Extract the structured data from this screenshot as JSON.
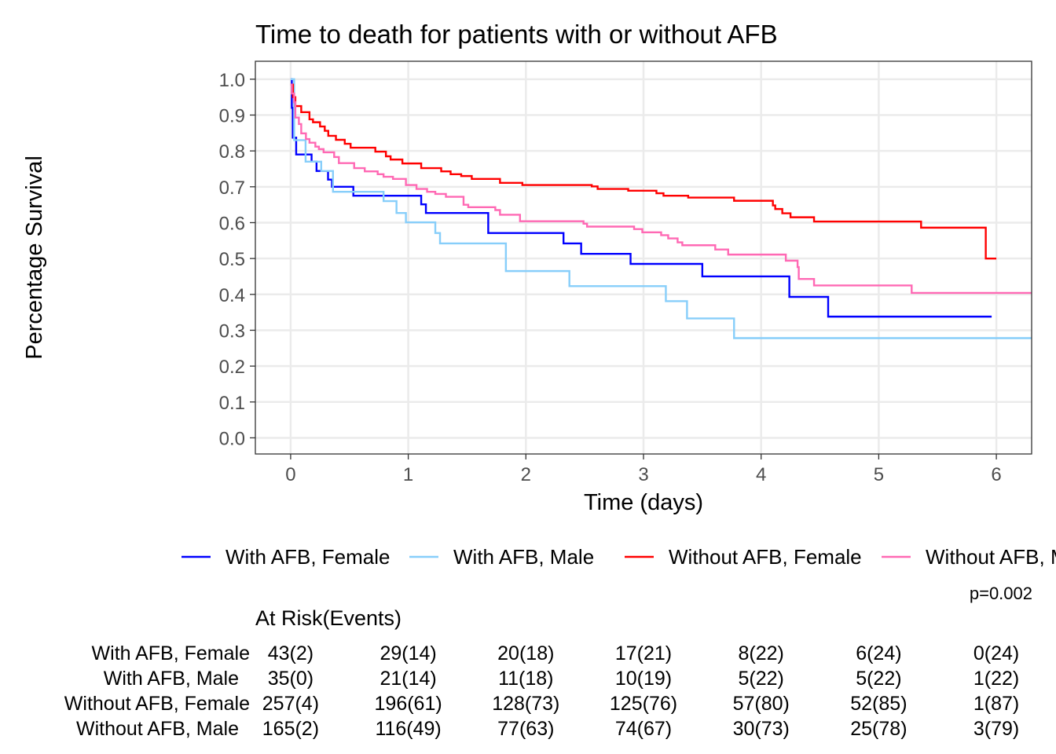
{
  "chart_data": {
    "type": "line",
    "subtype": "kaplan-meier step",
    "title": "Time to death for patients with or without AFB",
    "xlabel": "Time (days)",
    "ylabel": "Percentage Survival",
    "xlim": [
      -0.3,
      6.3
    ],
    "ylim": [
      -0.045,
      1.05
    ],
    "xticks": [
      0,
      1,
      2,
      3,
      4,
      5,
      6
    ],
    "yticks": [
      "0.0",
      "0.1",
      "0.2",
      "0.3",
      "0.4",
      "0.5",
      "0.6",
      "0.7",
      "0.8",
      "0.9",
      "1.0"
    ],
    "grid": true,
    "legend_position": "bottom",
    "pvalue": "p=0.002",
    "series": [
      {
        "name": "With AFB, Female",
        "color": "#0000FF",
        "end": 5.96,
        "steps": [
          [
            0,
            1.0
          ],
          [
            0.01,
            0.92
          ],
          [
            0.018,
            0.837
          ],
          [
            0.047,
            0.79
          ],
          [
            0.178,
            0.77
          ],
          [
            0.22,
            0.744
          ],
          [
            0.318,
            0.72
          ],
          [
            0.351,
            0.7
          ],
          [
            0.533,
            0.675
          ],
          [
            1.11,
            0.651
          ],
          [
            1.15,
            0.627
          ],
          [
            1.68,
            0.571
          ],
          [
            2.32,
            0.542
          ],
          [
            2.47,
            0.513
          ],
          [
            2.89,
            0.485
          ],
          [
            3.5,
            0.45
          ],
          [
            4.24,
            0.393
          ],
          [
            4.57,
            0.338
          ]
        ]
      },
      {
        "name": "With AFB, Male",
        "color": "#87CEFA",
        "end": 6.3,
        "steps": [
          [
            0,
            1.0
          ],
          [
            0.03,
            0.83
          ],
          [
            0.127,
            0.77
          ],
          [
            0.26,
            0.744
          ],
          [
            0.36,
            0.686
          ],
          [
            0.79,
            0.66
          ],
          [
            0.9,
            0.627
          ],
          [
            0.98,
            0.601
          ],
          [
            1.23,
            0.571
          ],
          [
            1.27,
            0.542
          ],
          [
            1.83,
            0.465
          ],
          [
            2.37,
            0.423
          ],
          [
            3.19,
            0.381
          ],
          [
            3.37,
            0.333
          ],
          [
            3.77,
            0.278
          ]
        ]
      },
      {
        "name": "Without AFB, Female",
        "color": "#FF0000",
        "end": 6.0,
        "steps": [
          [
            0,
            0.985
          ],
          [
            0.02,
            0.95
          ],
          [
            0.04,
            0.925
          ],
          [
            0.09,
            0.908
          ],
          [
            0.16,
            0.888
          ],
          [
            0.19,
            0.88
          ],
          [
            0.25,
            0.868
          ],
          [
            0.29,
            0.856
          ],
          [
            0.32,
            0.842
          ],
          [
            0.385,
            0.831
          ],
          [
            0.46,
            0.82
          ],
          [
            0.51,
            0.809
          ],
          [
            0.72,
            0.798
          ],
          [
            0.81,
            0.785
          ],
          [
            0.85,
            0.776
          ],
          [
            0.95,
            0.765
          ],
          [
            1.11,
            0.752
          ],
          [
            1.28,
            0.743
          ],
          [
            1.36,
            0.735
          ],
          [
            1.45,
            0.73
          ],
          [
            1.54,
            0.722
          ],
          [
            1.78,
            0.711
          ],
          [
            1.97,
            0.705
          ],
          [
            2.56,
            0.701
          ],
          [
            2.61,
            0.694
          ],
          [
            2.87,
            0.689
          ],
          [
            3.11,
            0.682
          ],
          [
            3.17,
            0.675
          ],
          [
            3.38,
            0.67
          ],
          [
            3.77,
            0.661
          ],
          [
            4.1,
            0.648
          ],
          [
            4.12,
            0.638
          ],
          [
            4.18,
            0.626
          ],
          [
            4.25,
            0.615
          ],
          [
            4.45,
            0.603
          ],
          [
            5.36,
            0.586
          ],
          [
            5.91,
            0.5
          ]
        ]
      },
      {
        "name": "Without AFB, Male",
        "color": "#FF69B4",
        "end": 6.3,
        "steps": [
          [
            0,
            0.985
          ],
          [
            0.01,
            0.96
          ],
          [
            0.03,
            0.936
          ],
          [
            0.04,
            0.893
          ],
          [
            0.07,
            0.875
          ],
          [
            0.09,
            0.849
          ],
          [
            0.13,
            0.833
          ],
          [
            0.16,
            0.823
          ],
          [
            0.21,
            0.812
          ],
          [
            0.24,
            0.805
          ],
          [
            0.28,
            0.796
          ],
          [
            0.37,
            0.783
          ],
          [
            0.41,
            0.766
          ],
          [
            0.54,
            0.752
          ],
          [
            0.63,
            0.743
          ],
          [
            0.74,
            0.735
          ],
          [
            0.79,
            0.728
          ],
          [
            0.87,
            0.722
          ],
          [
            0.98,
            0.705
          ],
          [
            1.07,
            0.694
          ],
          [
            1.16,
            0.686
          ],
          [
            1.23,
            0.68
          ],
          [
            1.32,
            0.672
          ],
          [
            1.47,
            0.65
          ],
          [
            1.51,
            0.643
          ],
          [
            1.74,
            0.635
          ],
          [
            1.78,
            0.622
          ],
          [
            1.95,
            0.604
          ],
          [
            2.49,
            0.597
          ],
          [
            2.52,
            0.589
          ],
          [
            2.92,
            0.582
          ],
          [
            2.99,
            0.573
          ],
          [
            3.15,
            0.565
          ],
          [
            3.21,
            0.556
          ],
          [
            3.29,
            0.545
          ],
          [
            3.33,
            0.537
          ],
          [
            3.61,
            0.525
          ],
          [
            3.72,
            0.511
          ],
          [
            4.21,
            0.494
          ],
          [
            4.31,
            0.476
          ],
          [
            4.32,
            0.443
          ],
          [
            4.45,
            0.425
          ],
          [
            5.28,
            0.404
          ]
        ]
      }
    ],
    "risk_table": {
      "title": "At Risk(Events)",
      "times": [
        0,
        1,
        2,
        3,
        4,
        5,
        6
      ],
      "rows": [
        {
          "label": "With AFB, Female",
          "values": [
            "43(2)",
            "29(14)",
            "20(18)",
            "17(21)",
            "8(22)",
            "6(24)",
            "0(24)"
          ]
        },
        {
          "label": "With AFB, Male",
          "values": [
            "35(0)",
            "21(14)",
            "11(18)",
            "10(19)",
            "5(22)",
            "5(22)",
            "1(22)"
          ]
        },
        {
          "label": "Without AFB, Female",
          "values": [
            "257(4)",
            "196(61)",
            "128(73)",
            "125(76)",
            "57(80)",
            "52(85)",
            "1(87)"
          ]
        },
        {
          "label": "Without AFB, Male",
          "values": [
            "165(2)",
            "116(49)",
            "77(63)",
            "74(67)",
            "30(73)",
            "25(78)",
            "3(79)"
          ]
        }
      ]
    }
  }
}
